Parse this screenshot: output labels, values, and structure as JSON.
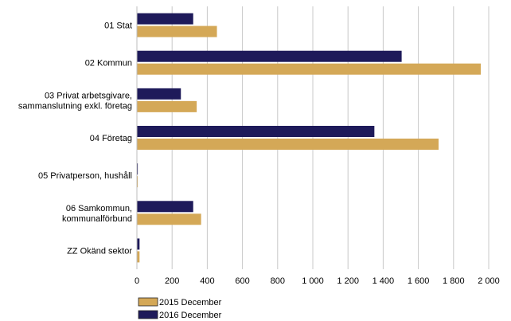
{
  "chart_data": {
    "type": "bar",
    "orientation": "horizontal",
    "title": "",
    "xlabel": "",
    "ylabel": "",
    "categories": [
      [
        "01 Stat"
      ],
      [
        "02 Kommun"
      ],
      [
        "03 Privat arbetsgivare,",
        "sammanslutning exkl. företag"
      ],
      [
        "04 Företag"
      ],
      [
        "05 Privatperson, hushåll"
      ],
      [
        "06 Samkommun,",
        "kommunalförbund"
      ],
      [
        "ZZ Okänd sektor"
      ]
    ],
    "series": [
      {
        "name": "2016 December",
        "color": "#1e1a5a",
        "values": [
          320,
          1505,
          250,
          1350,
          5,
          320,
          15
        ]
      },
      {
        "name": "2015 December",
        "color": "#d4a857",
        "values": [
          455,
          1955,
          340,
          1715,
          5,
          365,
          15
        ]
      }
    ],
    "xlim": [
      0,
      2000
    ],
    "xticks": [
      0,
      200,
      400,
      600,
      800,
      1000,
      1200,
      1400,
      1600,
      1800,
      2000
    ],
    "xtick_labels": [
      "0",
      "200",
      "400",
      "600",
      "800",
      "1 000",
      "1 200",
      "1 400",
      "1 600",
      "1 800",
      "2 000"
    ],
    "grid": true,
    "legend": {
      "placement": "bottom-left",
      "entries": [
        {
          "label": "2015 December",
          "color": "#d4a857"
        },
        {
          "label": "2016 December",
          "color": "#1e1a5a"
        }
      ]
    }
  }
}
